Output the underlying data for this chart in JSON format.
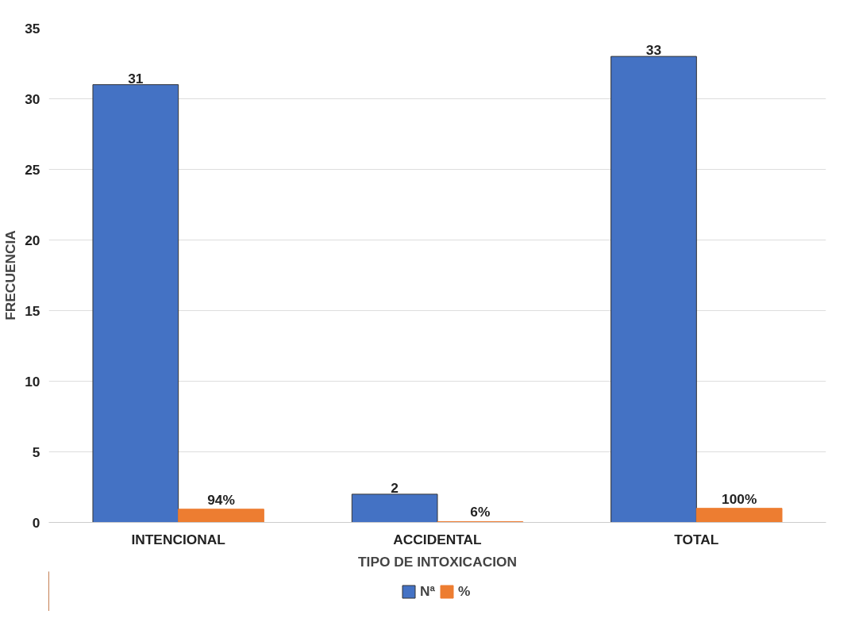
{
  "chart_data": {
    "type": "bar",
    "xlabel": "TIPO DE INTOXICACION",
    "ylabel": "FRECUENCIA",
    "categories": [
      "INTENCIONAL",
      "ACCIDENTAL",
      "TOTAL"
    ],
    "series": [
      {
        "name": "Nª",
        "color": "#4472c4",
        "values": [
          31,
          2,
          33
        ],
        "value_labels": [
          "31",
          "2",
          "33"
        ]
      },
      {
        "name": "%",
        "color": "#ed7d31",
        "values": [
          0.94,
          0.06,
          1.0
        ],
        "value_labels": [
          "94%",
          "6%",
          "100%"
        ]
      }
    ],
    "ylim": [
      0,
      35
    ],
    "yticks": [
      0,
      5,
      10,
      15,
      20,
      25,
      30,
      35
    ],
    "grid": "y",
    "legend": "bottom"
  }
}
